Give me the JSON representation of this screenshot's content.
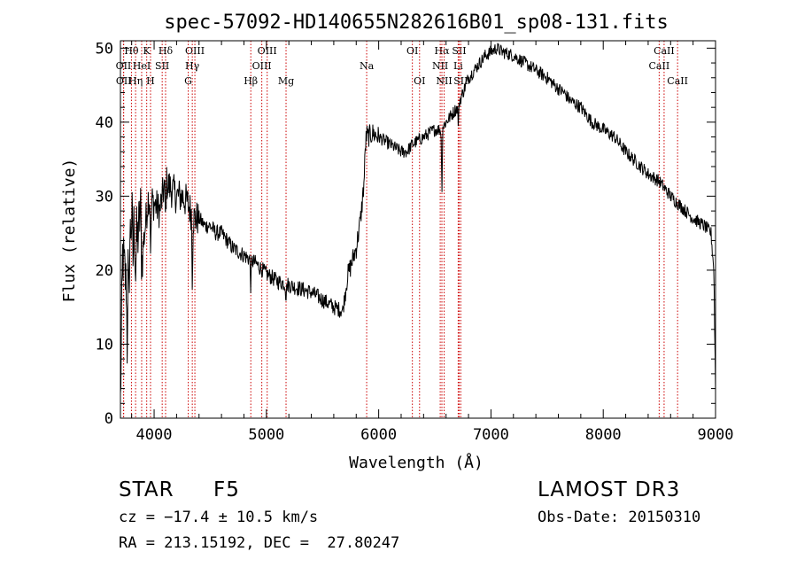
{
  "chart_data": {
    "type": "line",
    "title": "spec-57092-HD140655N282616B01_sp08-131.fits",
    "xlabel": "Wavelength (Å)",
    "ylabel": "Flux (relative)",
    "xlim": [
      3700,
      9000
    ],
    "ylim": [
      0,
      51
    ],
    "xticks": [
      4000,
      5000,
      6000,
      7000,
      8000,
      9000
    ],
    "yticks": [
      0,
      10,
      20,
      30,
      40,
      50
    ],
    "line_color": "#000000",
    "marker_color": "#cc0000",
    "anchors": [
      [
        3700,
        2
      ],
      [
        3720,
        22
      ],
      [
        3750,
        18
      ],
      [
        3800,
        27
      ],
      [
        3850,
        24
      ],
      [
        3880,
        28
      ],
      [
        3900,
        23
      ],
      [
        3950,
        30
      ],
      [
        4000,
        29
      ],
      [
        4050,
        28
      ],
      [
        4100,
        32
      ],
      [
        4150,
        31
      ],
      [
        4200,
        30
      ],
      [
        4250,
        30
      ],
      [
        4300,
        29
      ],
      [
        4350,
        27
      ],
      [
        4400,
        27
      ],
      [
        4450,
        26
      ],
      [
        4500,
        26
      ],
      [
        4550,
        25
      ],
      [
        4600,
        25
      ],
      [
        4700,
        23
      ],
      [
        4800,
        22
      ],
      [
        4900,
        21
      ],
      [
        5000,
        19.5
      ],
      [
        5100,
        18.5
      ],
      [
        5200,
        18
      ],
      [
        5300,
        17.5
      ],
      [
        5400,
        17
      ],
      [
        5500,
        16
      ],
      [
        5600,
        15
      ],
      [
        5680,
        14.5
      ],
      [
        5720,
        19
      ],
      [
        5760,
        21
      ],
      [
        5800,
        23
      ],
      [
        5840,
        27
      ],
      [
        5870,
        32
      ],
      [
        5890,
        40
      ],
      [
        5900,
        38
      ],
      [
        5950,
        38.5
      ],
      [
        6000,
        38
      ],
      [
        6100,
        37
      ],
      [
        6200,
        36
      ],
      [
        6250,
        36
      ],
      [
        6300,
        37
      ],
      [
        6400,
        38
      ],
      [
        6500,
        39
      ],
      [
        6550,
        39
      ],
      [
        6600,
        40
      ],
      [
        6700,
        42
      ],
      [
        6800,
        46
      ],
      [
        6850,
        47
      ],
      [
        6900,
        48
      ],
      [
        6950,
        49
      ],
      [
        7000,
        49.5
      ],
      [
        7050,
        50
      ],
      [
        7100,
        49.5
      ],
      [
        7200,
        49
      ],
      [
        7300,
        48
      ],
      [
        7400,
        47
      ],
      [
        7500,
        46
      ],
      [
        7600,
        44.5
      ],
      [
        7650,
        44
      ],
      [
        7700,
        43
      ],
      [
        7800,
        42
      ],
      [
        7900,
        40
      ],
      [
        8000,
        39
      ],
      [
        8100,
        38
      ],
      [
        8200,
        36
      ],
      [
        8300,
        34.5
      ],
      [
        8400,
        33
      ],
      [
        8500,
        32
      ],
      [
        8600,
        30
      ],
      [
        8700,
        28.5
      ],
      [
        8800,
        27
      ],
      [
        8900,
        26
      ],
      [
        8960,
        25
      ],
      [
        8985,
        20
      ],
      [
        9000,
        4
      ]
    ],
    "dips": [
      [
        3835,
        -6
      ],
      [
        3890,
        -5
      ],
      [
        3970,
        -8
      ],
      [
        4102,
        -6
      ],
      [
        4340,
        -8
      ],
      [
        4861,
        -4
      ],
      [
        5175,
        -2
      ],
      [
        5890,
        -2
      ],
      [
        6563,
        -9
      ],
      [
        6710,
        -3
      ],
      [
        3760,
        -10
      ],
      [
        3775,
        -8
      ],
      [
        3812,
        -5
      ]
    ],
    "lines": [
      {
        "name": "Hθ",
        "wl": 3798,
        "row": 0
      },
      {
        "name": "OII",
        "wl": 3727,
        "row": 1
      },
      {
        "name": "OII",
        "wl": 3729,
        "row": 2
      },
      {
        "name": "K",
        "wl": 3934,
        "row": 0
      },
      {
        "name": "HeI",
        "wl": 3889,
        "row": 1
      },
      {
        "name": "Hη",
        "wl": 3835,
        "row": 2
      },
      {
        "name": "Hδ",
        "wl": 4102,
        "row": 0
      },
      {
        "name": "SII",
        "wl": 4072,
        "row": 1
      },
      {
        "name": "H",
        "wl": 3968,
        "row": 2
      },
      {
        "name": "OIII",
        "wl": 4363,
        "row": 0
      },
      {
        "name": "Hγ",
        "wl": 4340,
        "row": 1
      },
      {
        "name": "G",
        "wl": 4304,
        "row": 2
      },
      {
        "name": "OIII",
        "wl": 5007,
        "row": 0
      },
      {
        "name": "OIII",
        "wl": 4959,
        "row": 1
      },
      {
        "name": "Hβ",
        "wl": 4861,
        "row": 2
      },
      {
        "name": "Mg",
        "wl": 5175,
        "row": 2
      },
      {
        "name": "Na",
        "wl": 5893,
        "row": 1
      },
      {
        "name": "OI",
        "wl": 6300,
        "row": 0
      },
      {
        "name": "OI",
        "wl": 6364,
        "row": 2
      },
      {
        "name": "Hα",
        "wl": 6563,
        "row": 0
      },
      {
        "name": "NII",
        "wl": 6548,
        "row": 1
      },
      {
        "name": "NII",
        "wl": 6583,
        "row": 2
      },
      {
        "name": "SII",
        "wl": 6717,
        "row": 0
      },
      {
        "name": "Li",
        "wl": 6708,
        "row": 1
      },
      {
        "name": "SII",
        "wl": 6731,
        "row": 2
      },
      {
        "name": "CaII",
        "wl": 8542,
        "row": 0
      },
      {
        "name": "CaII",
        "wl": 8498,
        "row": 1
      },
      {
        "name": "CaII",
        "wl": 8662,
        "row": 2
      }
    ]
  },
  "info": {
    "class_label": "STAR",
    "subclass": "F5",
    "survey": "LAMOST DR3",
    "redshift": "cz = −17.4 ± 10.5 km/s",
    "obs_date": "Obs-Date: 20150310",
    "coords": "RA = 213.15192, DEC =  27.80247"
  }
}
